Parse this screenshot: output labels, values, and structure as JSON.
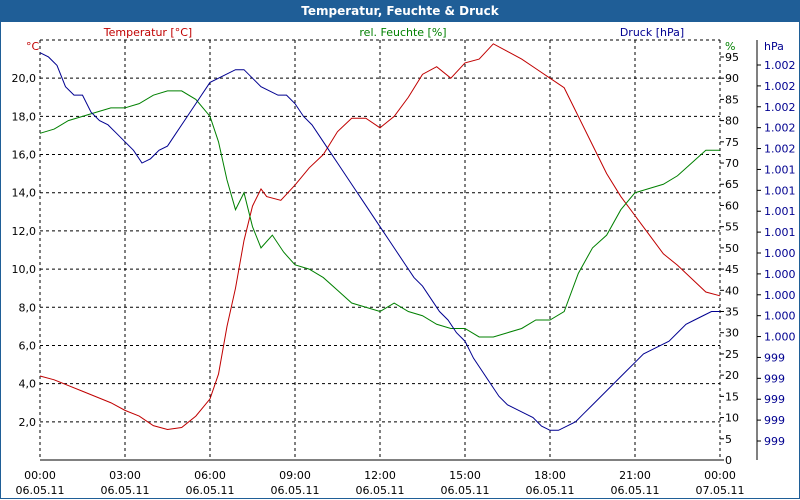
{
  "chart_data": {
    "type": "line",
    "title": "Temperatur, Feuchte & Druck",
    "x_ticks": [
      {
        "time": "00:00",
        "date": "06.05.11"
      },
      {
        "time": "03:00",
        "date": "06.05.11"
      },
      {
        "time": "06:00",
        "date": "06.05.11"
      },
      {
        "time": "09:00",
        "date": "06.05.11"
      },
      {
        "time": "12:00",
        "date": "06.05.11"
      },
      {
        "time": "15:00",
        "date": "06.05.11"
      },
      {
        "time": "18:00",
        "date": "06.05.11"
      },
      {
        "time": "21:00",
        "date": "06.05.11"
      },
      {
        "time": "00:00",
        "date": "07.05.11"
      }
    ],
    "xlim_hours": [
      0,
      24
    ],
    "grid": true,
    "axes": {
      "temperature": {
        "unit": "°C",
        "side": "left",
        "color": "#c00000",
        "ylim": [
          0,
          22
        ],
        "ticks": [
          "2,0",
          "4,0",
          "6,0",
          "8,0",
          "10,0",
          "12,0",
          "14,0",
          "16,0",
          "18,0",
          "20,0"
        ]
      },
      "humidity": {
        "unit": "%",
        "side": "right",
        "color": "#008000",
        "ylim": [
          0,
          99
        ],
        "ticks": [
          "0",
          "5",
          "10",
          "15",
          "20",
          "25",
          "30",
          "35",
          "40",
          "45",
          "50",
          "55",
          "60",
          "65",
          "70",
          "75",
          "80",
          "85",
          "90",
          "95"
        ]
      },
      "pressure": {
        "unit": "hPa",
        "side": "right",
        "color": "#000090",
        "ticks": [
          "999",
          "999",
          "999",
          "999",
          "999",
          "1.000",
          "1.000",
          "1.000",
          "1.000",
          "1.000",
          "1.001",
          "1.001",
          "1.001",
          "1.001",
          "1.002",
          "1.002",
          "1.002",
          "1.002",
          "1.002"
        ]
      }
    },
    "series": [
      {
        "name": "Temperatur [°C]",
        "axis": "temperature",
        "color": "#c00000",
        "points": [
          [
            0,
            4.4
          ],
          [
            0.5,
            4.2
          ],
          [
            1,
            3.9
          ],
          [
            1.5,
            3.6
          ],
          [
            2,
            3.3
          ],
          [
            2.5,
            3.0
          ],
          [
            3,
            2.6
          ],
          [
            3.5,
            2.3
          ],
          [
            4,
            1.8
          ],
          [
            4.5,
            1.6
          ],
          [
            5,
            1.7
          ],
          [
            5.5,
            2.3
          ],
          [
            6,
            3.2
          ],
          [
            6.3,
            4.5
          ],
          [
            6.6,
            7.0
          ],
          [
            6.9,
            9.0
          ],
          [
            7.2,
            11.5
          ],
          [
            7.5,
            13.3
          ],
          [
            7.8,
            14.2
          ],
          [
            8,
            13.8
          ],
          [
            8.5,
            13.6
          ],
          [
            9,
            14.4
          ],
          [
            9.5,
            15.3
          ],
          [
            10,
            16.0
          ],
          [
            10.5,
            17.2
          ],
          [
            11,
            17.9
          ],
          [
            11.5,
            17.9
          ],
          [
            12,
            17.4
          ],
          [
            12.5,
            18.0
          ],
          [
            13,
            19.0
          ],
          [
            13.5,
            20.2
          ],
          [
            14,
            20.6
          ],
          [
            14.5,
            20.0
          ],
          [
            15,
            20.8
          ],
          [
            15.5,
            21.0
          ],
          [
            16,
            21.8
          ],
          [
            16.5,
            21.4
          ],
          [
            17,
            21.0
          ],
          [
            17.5,
            20.5
          ],
          [
            18,
            20.0
          ],
          [
            18.5,
            19.5
          ],
          [
            19,
            18.0
          ],
          [
            19.5,
            16.5
          ],
          [
            20,
            15.0
          ],
          [
            20.5,
            13.8
          ],
          [
            21,
            12.8
          ],
          [
            21.5,
            11.8
          ],
          [
            22,
            10.8
          ],
          [
            22.5,
            10.2
          ],
          [
            23,
            9.5
          ],
          [
            23.5,
            8.8
          ],
          [
            24,
            8.6
          ]
        ]
      },
      {
        "name": "rel. Feuchte [%]",
        "axis": "humidity",
        "color": "#008000",
        "points": [
          [
            0,
            77
          ],
          [
            0.5,
            78
          ],
          [
            1,
            80
          ],
          [
            1.5,
            81
          ],
          [
            2,
            82
          ],
          [
            2.5,
            83
          ],
          [
            3,
            83
          ],
          [
            3.5,
            84
          ],
          [
            4,
            86
          ],
          [
            4.5,
            87
          ],
          [
            5,
            87
          ],
          [
            5.5,
            85
          ],
          [
            6,
            81
          ],
          [
            6.3,
            75
          ],
          [
            6.6,
            66
          ],
          [
            6.9,
            59
          ],
          [
            7.2,
            63
          ],
          [
            7.5,
            55
          ],
          [
            7.8,
            50
          ],
          [
            8.2,
            53
          ],
          [
            8.6,
            49
          ],
          [
            9,
            46
          ],
          [
            9.5,
            45
          ],
          [
            10,
            43
          ],
          [
            10.5,
            40
          ],
          [
            11,
            37
          ],
          [
            11.5,
            36
          ],
          [
            12,
            35
          ],
          [
            12.5,
            37
          ],
          [
            13,
            35
          ],
          [
            13.5,
            34
          ],
          [
            14,
            32
          ],
          [
            14.5,
            31
          ],
          [
            15,
            31
          ],
          [
            15.5,
            29
          ],
          [
            16,
            29
          ],
          [
            16.5,
            30
          ],
          [
            17,
            31
          ],
          [
            17.5,
            33
          ],
          [
            18,
            33
          ],
          [
            18.5,
            35
          ],
          [
            19,
            44
          ],
          [
            19.5,
            50
          ],
          [
            20,
            53
          ],
          [
            20.5,
            59
          ],
          [
            21,
            63
          ],
          [
            21.5,
            64
          ],
          [
            22,
            65
          ],
          [
            22.5,
            67
          ],
          [
            23,
            70
          ],
          [
            23.5,
            73
          ],
          [
            24,
            73
          ]
        ]
      },
      {
        "name": "Druck [hPa]",
        "axis": "pressure",
        "color": "#000090",
        "points": [
          [
            0,
            96
          ],
          [
            0.3,
            95
          ],
          [
            0.6,
            93
          ],
          [
            0.9,
            88
          ],
          [
            1.2,
            86
          ],
          [
            1.5,
            86
          ],
          [
            1.8,
            82
          ],
          [
            2.1,
            80
          ],
          [
            2.4,
            79
          ],
          [
            2.7,
            77
          ],
          [
            3,
            75
          ],
          [
            3.3,
            73
          ],
          [
            3.6,
            70
          ],
          [
            3.9,
            71
          ],
          [
            4.2,
            73
          ],
          [
            4.5,
            74
          ],
          [
            4.8,
            77
          ],
          [
            5.1,
            80
          ],
          [
            5.4,
            83
          ],
          [
            5.7,
            86
          ],
          [
            6,
            89
          ],
          [
            6.3,
            90
          ],
          [
            6.6,
            91
          ],
          [
            6.9,
            92
          ],
          [
            7.2,
            92
          ],
          [
            7.5,
            90
          ],
          [
            7.8,
            88
          ],
          [
            8.1,
            87
          ],
          [
            8.4,
            86
          ],
          [
            8.7,
            86
          ],
          [
            9,
            84
          ],
          [
            9.3,
            81
          ],
          [
            9.6,
            79
          ],
          [
            9.9,
            76
          ],
          [
            10.2,
            73
          ],
          [
            10.5,
            70
          ],
          [
            10.8,
            67
          ],
          [
            11.1,
            64
          ],
          [
            11.4,
            61
          ],
          [
            11.7,
            58
          ],
          [
            12,
            55
          ],
          [
            12.3,
            52
          ],
          [
            12.6,
            49
          ],
          [
            12.9,
            46
          ],
          [
            13.2,
            43
          ],
          [
            13.5,
            41
          ],
          [
            13.8,
            38
          ],
          [
            14.1,
            35
          ],
          [
            14.4,
            33
          ],
          [
            14.7,
            30
          ],
          [
            15,
            28
          ],
          [
            15.3,
            24
          ],
          [
            15.6,
            21
          ],
          [
            15.9,
            18
          ],
          [
            16.2,
            15
          ],
          [
            16.5,
            13
          ],
          [
            16.8,
            12
          ],
          [
            17.1,
            11
          ],
          [
            17.4,
            10
          ],
          [
            17.7,
            8
          ],
          [
            18,
            7
          ],
          [
            18.3,
            7
          ],
          [
            18.6,
            8
          ],
          [
            18.9,
            9
          ],
          [
            19.2,
            11
          ],
          [
            19.5,
            13
          ],
          [
            19.8,
            15
          ],
          [
            20.1,
            17
          ],
          [
            20.4,
            19
          ],
          [
            20.7,
            21
          ],
          [
            21,
            23
          ],
          [
            21.3,
            25
          ],
          [
            21.6,
            26
          ],
          [
            21.9,
            27
          ],
          [
            22.2,
            28
          ],
          [
            22.5,
            30
          ],
          [
            22.8,
            32
          ],
          [
            23.1,
            33
          ],
          [
            23.4,
            34
          ],
          [
            23.7,
            35
          ],
          [
            24,
            35
          ]
        ]
      }
    ]
  }
}
